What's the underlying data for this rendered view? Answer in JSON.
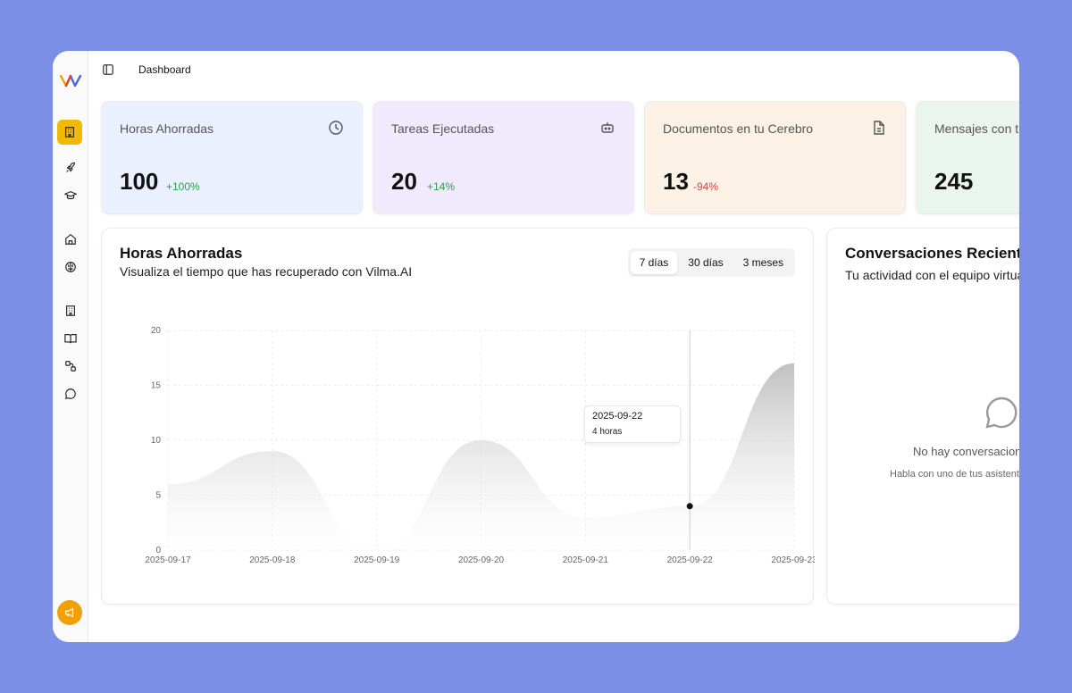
{
  "header": {
    "title": "Dashboard"
  },
  "sidebar": {
    "icons": [
      "logo",
      "building-icon",
      "rocket-icon",
      "graduation-cap-icon",
      "home-icon",
      "brain-icon",
      "building-icon",
      "book-icon",
      "workflow-icon",
      "chat-icon",
      "megaphone-icon"
    ]
  },
  "stats": [
    {
      "label": "Horas Ahorradas",
      "value": "100",
      "change": "+100%",
      "icon": "clock-icon"
    },
    {
      "label": "Tareas Ejecutadas",
      "value": "20",
      "change": "+14%",
      "icon": "bot-icon"
    },
    {
      "label": "Documentos en tu Cerebro",
      "value": "13",
      "change": "-94%",
      "icon": "file-icon"
    },
    {
      "label": "Mensajes con tu",
      "value": "245",
      "change": ""
    }
  ],
  "chart_panel": {
    "title": "Horas Ahorradas",
    "subtitle": "Visualiza el tiempo que has recuperado con Vilma.AI",
    "ranges": [
      "7 días",
      "30 días",
      "3 meses"
    ],
    "active_range": "7 días",
    "tooltip": {
      "date": "2025-09-22",
      "value": "4 horas"
    }
  },
  "chart_data": {
    "type": "area",
    "x": [
      "2025-09-17",
      "2025-09-18",
      "2025-09-19",
      "2025-09-20",
      "2025-09-21",
      "2025-09-22",
      "2025-09-23"
    ],
    "values": [
      6,
      9,
      0,
      10,
      3,
      4,
      17
    ],
    "ylim": [
      0,
      20
    ],
    "yticks": [
      0,
      5,
      10,
      15,
      20
    ],
    "grid": true,
    "colors": {
      "fill_top": "#bdbdbd",
      "fill_bottom": "#ffffff"
    }
  },
  "conversations": {
    "title": "Conversaciones Recientes",
    "subtitle": "Tu actividad con el equipo virtual",
    "empty_title": "No hay conversaciones",
    "empty_hint": "Habla con uno de tus asistentes"
  }
}
